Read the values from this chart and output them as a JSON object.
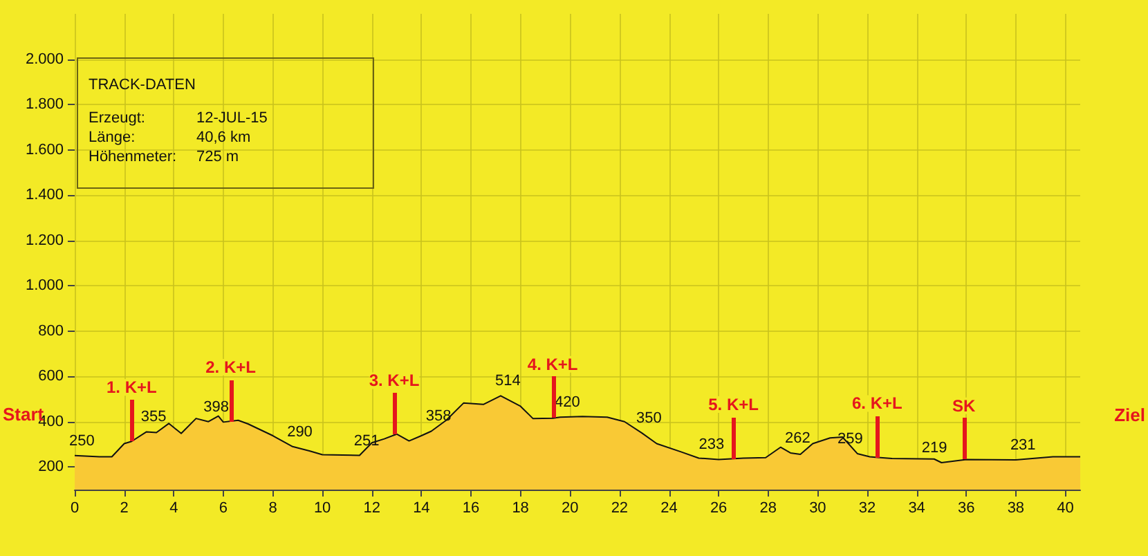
{
  "chart_data": {
    "type": "area",
    "x": [
      0,
      1,
      1.5,
      2,
      2.3,
      2.9,
      3.3,
      3.8,
      4.3,
      4.9,
      5.4,
      5.8,
      6,
      6.6,
      7,
      8,
      8.8,
      9.5,
      10,
      11.5,
      12,
      12.5,
      13,
      13.5,
      14,
      14.4,
      15,
      15.7,
      16.5,
      17.2,
      18,
      18.5,
      19.3,
      19.6,
      20.5,
      21.5,
      22.2,
      22.9,
      23.5,
      24.5,
      25.2,
      26,
      27,
      27.9,
      28.5,
      28.9,
      29.3,
      29.8,
      30.5,
      31,
      31.6,
      32.1,
      33,
      34.7,
      35,
      36,
      38,
      39.5,
      40.6
    ],
    "series": [
      {
        "color": "#f9c935",
        "values": [
          250,
          245,
          245,
          303,
          313,
          355,
          352,
          392,
          348,
          414,
          400,
          425,
          398,
          406,
          390,
          338,
          290,
          270,
          254,
          251,
          307,
          324,
          345,
          315,
          338,
          358,
          406,
          482,
          476,
          514,
          468,
          414,
          415,
          420,
          423,
          420,
          400,
          350,
          303,
          266,
          239,
          233,
          239,
          241,
          287,
          262,
          256,
          303,
          328,
          332,
          259,
          245,
          237,
          235,
          219,
          233,
          231,
          245,
          245
        ],
        "value_labels": [
          "250",
          null,
          null,
          null,
          null,
          "355",
          null,
          null,
          null,
          null,
          null,
          null,
          "398",
          null,
          null,
          null,
          "290",
          null,
          null,
          "251",
          null,
          null,
          null,
          null,
          null,
          "358",
          null,
          null,
          null,
          "514",
          null,
          null,
          null,
          "420",
          null,
          null,
          null,
          "350",
          null,
          null,
          null,
          "233",
          null,
          null,
          null,
          "262",
          null,
          null,
          null,
          null,
          "259",
          null,
          null,
          null,
          "219",
          null,
          "231",
          null,
          null
        ]
      }
    ],
    "xlim": [
      0,
      40.6
    ],
    "xticks": [
      0,
      2,
      4,
      6,
      8,
      10,
      12,
      14,
      16,
      18,
      20,
      22,
      24,
      26,
      28,
      30,
      32,
      34,
      36,
      38,
      40
    ],
    "ylim": [
      100,
      2200
    ],
    "yticks": [
      200,
      400,
      600,
      800,
      {
        "value": 1000,
        "label": "1.000"
      },
      {
        "value": 1200,
        "label": "1.200"
      },
      {
        "value": 1400,
        "label": "1.400"
      },
      {
        "value": 1600,
        "label": "1.600"
      },
      {
        "value": 1800,
        "label": "1.800"
      },
      {
        "value": 2000,
        "label": "2.000"
      }
    ],
    "grid": true,
    "annotations": [
      "TRACK-DATEN",
      "Erzeugt:",
      "12-JUL-15",
      "Länge:",
      "40,6 km",
      "Höhenmeter:",
      "725 m",
      {
        "text": "Start",
        "x": 0,
        "y": 250
      },
      {
        "text": "1. K+L",
        "x": 2.3,
        "y": 313
      },
      {
        "text": "2. K+L",
        "x": 6.3,
        "y": 402
      },
      {
        "text": "3. K+L",
        "x": 12.9,
        "y": 343
      },
      {
        "text": "4. K+L",
        "x": 19.3,
        "y": 415
      },
      {
        "text": "5. K+L",
        "x": 26.6,
        "y": 237
      },
      {
        "text": "6. K+L",
        "x": 32.4,
        "y": 242
      },
      {
        "text": "SK",
        "x": 35.9,
        "y": 232
      },
      {
        "text": "Ziel",
        "x": 40.6,
        "y": 245
      }
    ]
  }
}
